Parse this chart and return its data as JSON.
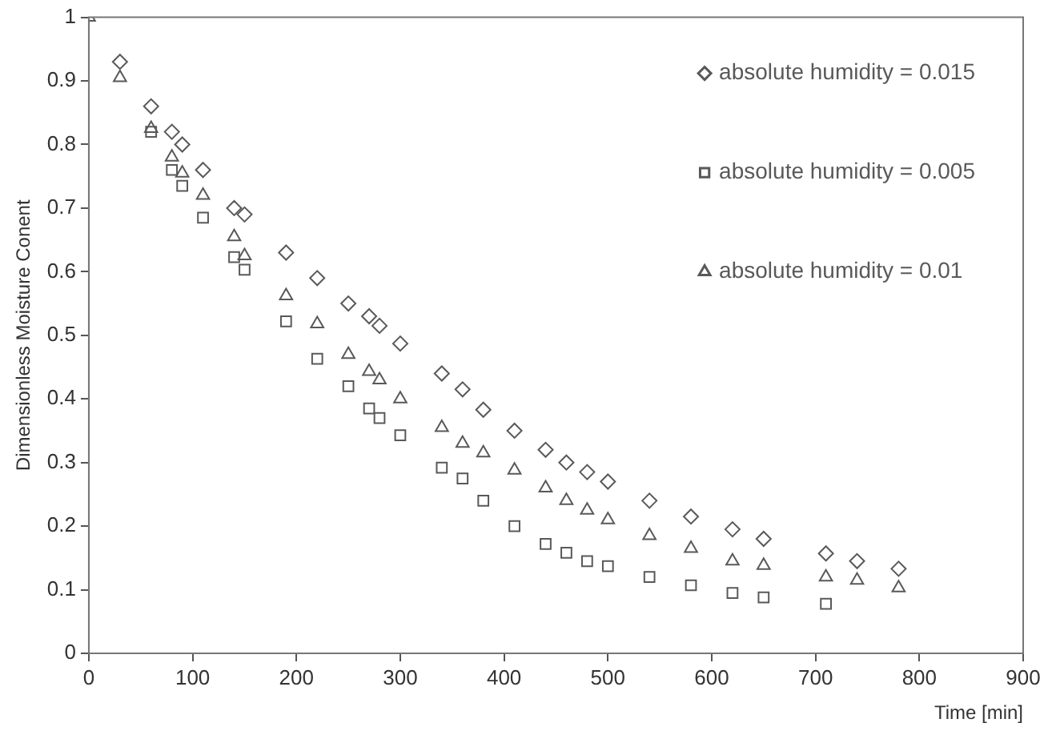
{
  "chart_data": {
    "type": "scatter",
    "xlabel": "Time [min]",
    "ylabel": "Dimensionless Moisture Conent",
    "xlim": [
      0,
      900
    ],
    "xticks": [
      0,
      100,
      200,
      300,
      400,
      500,
      600,
      700,
      800,
      900
    ],
    "ylim": [
      0,
      1
    ],
    "yticks": [
      0,
      0.1,
      0.2,
      0.3,
      0.4,
      0.5,
      0.6,
      0.7,
      0.8,
      0.9,
      1
    ],
    "grid": false,
    "legend": "top right",
    "series": [
      {
        "name": "absolute humidity = 0.015",
        "color": "#595959",
        "marker": "diamond",
        "x": [
          30,
          60,
          80,
          90,
          110,
          140,
          150,
          190,
          220,
          250,
          270,
          280,
          300,
          340,
          360,
          380,
          410,
          440,
          460,
          480,
          500,
          540,
          580,
          620,
          650,
          710,
          740,
          780
        ],
        "values": [
          0.93,
          0.86,
          0.82,
          0.8,
          0.76,
          0.7,
          0.69,
          0.63,
          0.59,
          0.55,
          0.53,
          0.515,
          0.487,
          0.44,
          0.415,
          0.383,
          0.35,
          0.32,
          0.3,
          0.285,
          0.27,
          0.24,
          0.215,
          0.195,
          0.18,
          0.157,
          0.145,
          0.133
        ]
      },
      {
        "name": "absolute humidity = 0.005",
        "color": "#595959",
        "marker": "square",
        "x": [
          60,
          80,
          90,
          110,
          140,
          150,
          190,
          220,
          250,
          270,
          280,
          300,
          340,
          360,
          380,
          410,
          440,
          460,
          480,
          500,
          540,
          580,
          620,
          650,
          710
        ],
        "values": [
          0.82,
          0.76,
          0.735,
          0.685,
          0.623,
          0.603,
          0.522,
          0.463,
          0.42,
          0.385,
          0.37,
          0.343,
          0.292,
          0.275,
          0.24,
          0.2,
          0.172,
          0.158,
          0.145,
          0.137,
          0.12,
          0.107,
          0.095,
          0.088,
          0.078
        ]
      },
      {
        "name": "absolute humidity = 0.01",
        "color": "#595959",
        "marker": "triangle",
        "x": [
          0,
          30,
          60,
          80,
          90,
          110,
          140,
          150,
          190,
          220,
          250,
          270,
          280,
          300,
          340,
          360,
          380,
          410,
          440,
          460,
          480,
          500,
          540,
          580,
          620,
          650,
          710,
          740,
          780
        ],
        "values": [
          1,
          0.905,
          0.825,
          0.78,
          0.755,
          0.72,
          0.655,
          0.625,
          0.562,
          0.518,
          0.47,
          0.443,
          0.43,
          0.4,
          0.355,
          0.33,
          0.315,
          0.288,
          0.26,
          0.24,
          0.225,
          0.21,
          0.185,
          0.165,
          0.145,
          0.138,
          0.12,
          0.115,
          0.103
        ]
      }
    ]
  }
}
